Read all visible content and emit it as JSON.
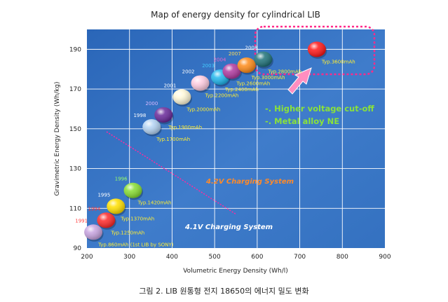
{
  "caption": "그림 2. LIB 원통형 전지 18650의 에너지 밀도 변화",
  "chart_data": {
    "type": "scatter",
    "title": "Map of energy density for cylindrical LIB",
    "xlabel": "Volumetric Energy Density (Wh/l)",
    "ylabel": "Gravimetric Energy Density (Wh/kg)",
    "xlim": [
      200,
      900
    ],
    "ylim": [
      90,
      200
    ],
    "xticks": [
      200,
      300,
      400,
      500,
      600,
      700,
      800,
      900
    ],
    "yticks": [
      90,
      110,
      130,
      150,
      170,
      190
    ],
    "grid": true,
    "points": [
      {
        "year": "1991",
        "x": 215,
        "y": 98,
        "label": "Typ.860mAh (1st LIB by SONY)",
        "color": "#c8a4e0",
        "year_color": "#ff4444"
      },
      {
        "year": "1994",
        "x": 245,
        "y": 104,
        "label": "Typ.1250mAh",
        "color": "#ff2a2a",
        "year_color": "#ff3030"
      },
      {
        "year": "1995",
        "x": 268,
        "y": 111,
        "label": "Typ.1370mAh",
        "color": "#ffe000",
        "year_color": "#ffffff"
      },
      {
        "year": "1996",
        "x": 308,
        "y": 119,
        "label": "Typ.1420mAh",
        "color": "#88dd33",
        "year_color": "#99ff66"
      },
      {
        "year": "1998",
        "x": 352,
        "y": 151,
        "label": "Typ.1700mAh",
        "color": "#b4d4f4",
        "year_color": "#ffffff"
      },
      {
        "year": "2000",
        "x": 380,
        "y": 157,
        "label": "Typ.1900mAh",
        "color": "#6a2a9a",
        "year_color": "#d8b8ff"
      },
      {
        "year": "2001",
        "x": 423,
        "y": 166,
        "label": "Typ.2000mAh",
        "color": "#fff8d8",
        "year_color": "#ffffff"
      },
      {
        "year": "2002",
        "x": 466,
        "y": 173,
        "label": "Typ.2200mAh",
        "color": "#ffcce0",
        "year_color": "#ffffff"
      },
      {
        "year": "2003",
        "x": 513,
        "y": 176,
        "label": "Typ.2400mAh",
        "color": "#22b8ee",
        "year_color": "#44ccff"
      },
      {
        "year": "2004",
        "x": 540,
        "y": 179,
        "label": "Typ.2600mAh",
        "color": "#b03aa0",
        "year_color": "#ee66cc"
      },
      {
        "year": "2007",
        "x": 575,
        "y": 182,
        "label": "Typ.3000mAh",
        "color": "#ff8c1a",
        "year_color": "#ffdd55"
      },
      {
        "year": "2008",
        "x": 614,
        "y": 185,
        "label": "Typ.2800mAh",
        "color": "#20737a",
        "year_color": "#ffffff"
      },
      {
        "year": "",
        "x": 740,
        "y": 190,
        "label": "Typ.3600mAh",
        "color": "#ff1818",
        "year_color": "#ffffff"
      }
    ],
    "annotations": [
      {
        "text": "-. Higher voltage cut-off",
        "color": "#8ae23a"
      },
      {
        "text": "-. Metal alloy NE",
        "color": "#8ae23a"
      },
      {
        "text": "4.2V Charging System",
        "color": "#ff8a2a"
      },
      {
        "text": "4.1V Charging System",
        "color": "#ffffff"
      }
    ]
  }
}
